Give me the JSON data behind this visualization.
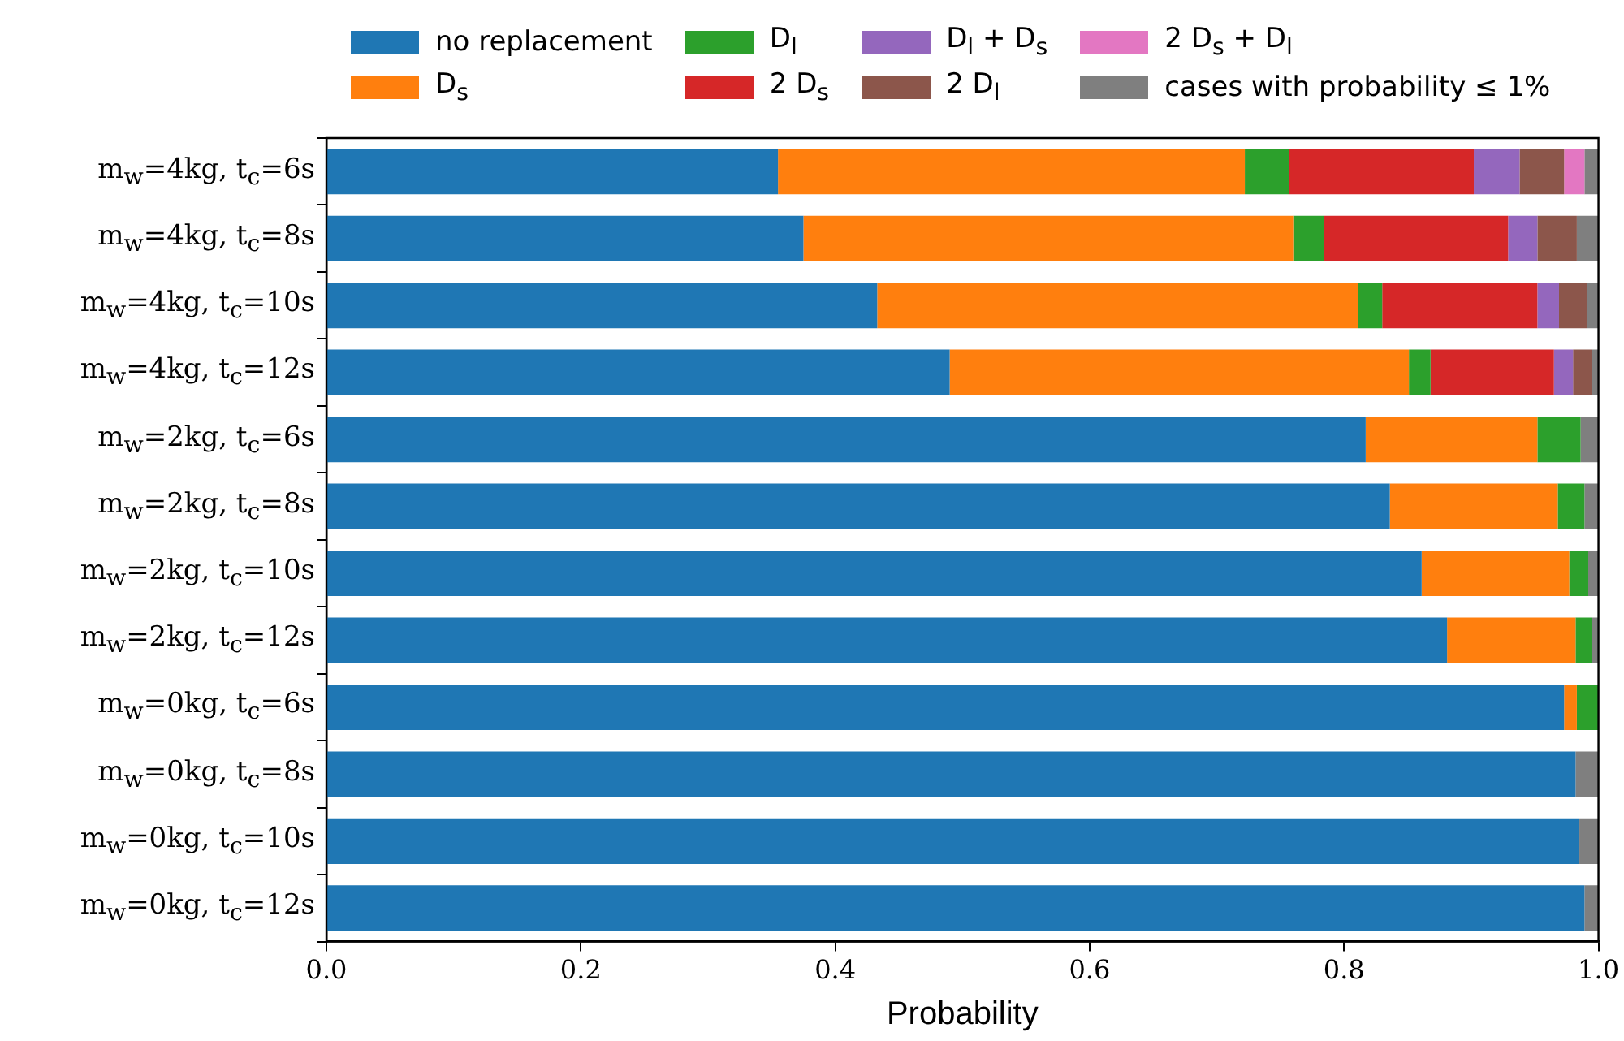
{
  "chart_data": {
    "type": "bar",
    "orientation": "horizontal",
    "stacked": true,
    "xlabel": "Probability",
    "xlim": [
      0,
      1
    ],
    "xticks": [
      {
        "value": 0,
        "label": "0.0"
      },
      {
        "value": 0.2,
        "label": "0.2"
      },
      {
        "value": 0.4,
        "label": "0.4"
      },
      {
        "value": 0.6,
        "label": "0.6"
      },
      {
        "value": 0.8,
        "label": "0.8"
      },
      {
        "value": 1,
        "label": "1.0"
      }
    ],
    "grid": false,
    "legend": "top",
    "categories": [
      "m$_{w}$=4kg, t$_{c}$=6s",
      "m$_{w}$=4kg, t$_{c}$=8s",
      "m$_{w}$=4kg, t$_{c}$=10s",
      "m$_{w}$=4kg, t$_{c}$=12s",
      "m$_{w}$=2kg, t$_{c}$=6s",
      "m$_{w}$=2kg, t$_{c}$=8s",
      "m$_{w}$=2kg, t$_{c}$=10s",
      "m$_{w}$=2kg, t$_{c}$=12s",
      "m$_{w}$=0kg, t$_{c}$=6s",
      "m$_{w}$=0kg, t$_{c}$=8s",
      "m$_{w}$=0kg, t$_{c}$=10s",
      "m$_{w}$=0kg, t$_{c}$=12s"
    ],
    "series": [
      {
        "name": "no replacement",
        "color": "#1f77b4",
        "values": [
          0.355,
          0.375,
          0.433,
          0.49,
          0.817,
          0.836,
          0.861,
          0.881,
          0.973,
          0.982,
          0.985,
          0.989
        ]
      },
      {
        "name": "D$_{s}$",
        "color": "#ff7f0e",
        "values": [
          0.367,
          0.385,
          0.378,
          0.361,
          0.135,
          0.132,
          0.116,
          0.101,
          0.01,
          0,
          0,
          0
        ]
      },
      {
        "name": "D$_{l}$",
        "color": "#2ca02c",
        "values": [
          0.035,
          0.024,
          0.019,
          0.017,
          0.034,
          0.021,
          0.015,
          0.013,
          0.017,
          0,
          0,
          0
        ]
      },
      {
        "name": "2 D$_{s}$",
        "color": "#d62728",
        "values": [
          0.145,
          0.145,
          0.122,
          0.097,
          0,
          0,
          0,
          0,
          0,
          0,
          0,
          0
        ]
      },
      {
        "name": "D$_{l}$ + D$_{s}$",
        "color": "#9467bd",
        "values": [
          0.036,
          0.023,
          0.017,
          0.015,
          0,
          0,
          0,
          0,
          0,
          0,
          0,
          0
        ]
      },
      {
        "name": "2 D$_{l}$",
        "color": "#8c564b",
        "values": [
          0.035,
          0.031,
          0.022,
          0.015,
          0,
          0,
          0,
          0,
          0,
          0,
          0,
          0
        ]
      },
      {
        "name": "2 D$_{s}$ + D$_{l}$",
        "color": "#e377c2",
        "values": [
          0.016,
          0,
          0,
          0,
          0,
          0,
          0,
          0,
          0,
          0,
          0,
          0
        ]
      },
      {
        "name": "cases with probability ≤ 1%",
        "color": "#7f7f7f",
        "values": [
          0.011,
          0.017,
          0.009,
          0.005,
          0.014,
          0.011,
          0.008,
          0.005,
          0,
          0.018,
          0.015,
          0.011
        ]
      }
    ]
  }
}
